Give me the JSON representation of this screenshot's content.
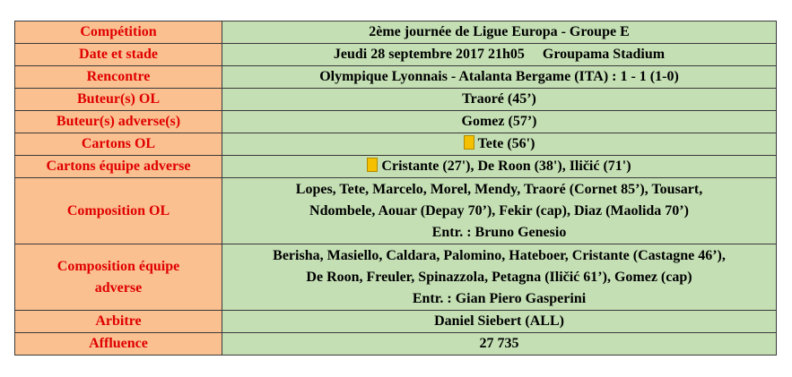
{
  "rows": {
    "competition": {
      "label": "Compétition",
      "value": "2ème journée de Ligue Europa - Groupe E"
    },
    "date_stade": {
      "label": "Date et stade",
      "date": "Jeudi 28 septembre 2017  21h05",
      "stadium": "Groupama Stadium"
    },
    "rencontre": {
      "label": "Rencontre",
      "value": "Olympique Lyonnais - Atalanta Bergame (ITA) : 1 - 1 (1-0)"
    },
    "buteurs_ol": {
      "label": "Buteur(s) OL",
      "value": "Traoré (45’)"
    },
    "buteurs_adv": {
      "label": "Buteur(s) adverse(s)",
      "value": "Gomez (57’)"
    },
    "cartons_ol": {
      "label": "Cartons OL",
      "value": "Tete (56')",
      "card_color": "#f5c000"
    },
    "cartons_adv": {
      "label": "Cartons équipe adverse",
      "value": "Cristante (27'), De Roon (38'), Iličić (71')",
      "card_color": "#f5c000"
    },
    "compo_ol": {
      "label": "Composition OL",
      "line1": "Lopes, Tete, Marcelo, Morel, Mendy, Traoré (Cornet 85’), Tousart,",
      "line2": "Ndombele, Aouar (Depay 70’), Fekir (cap), Diaz (Maolida 70’)",
      "coach": "Entr. : Bruno Genesio"
    },
    "compo_adv": {
      "label_line1": "Composition équipe",
      "label_line2": "adverse",
      "line1": "Berisha, Masiello, Caldara, Palomino, Hateboer, Cristante (Castagne 46’),",
      "line2": "De Roon, Freuler, Spinazzola, Petagna (Iličić 61’), Gomez (cap)",
      "coach": "Entr. : Gian Piero Gasperini"
    },
    "arbitre": {
      "label": "Arbitre",
      "value": "Daniel Siebert (ALL)"
    },
    "affluence": {
      "label": "Affluence",
      "value": "27 735"
    }
  },
  "colors": {
    "label_bg": "#fac090",
    "label_text": "#e00000",
    "value_bg": "#c4dfb4",
    "border": "#3a3a3a"
  }
}
